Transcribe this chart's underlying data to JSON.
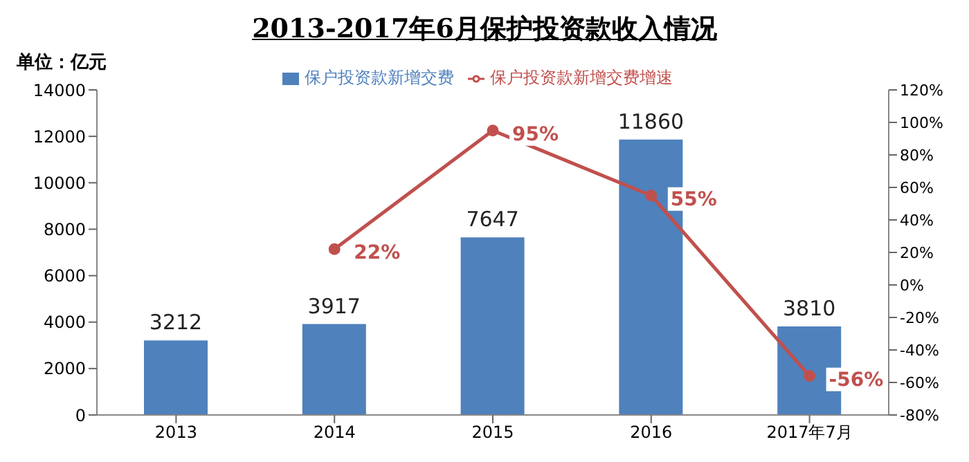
{
  "chart_data": {
    "type": "bar",
    "title": "2013-2017年6月保护投资款收入情况",
    "ylabel": "单位：亿元",
    "categories": [
      "2013",
      "2014",
      "2015",
      "2016",
      "2017年7月"
    ],
    "series": [
      {
        "name": "保户投资款新增交费",
        "color": "#4f81bd",
        "values": [
          3212,
          3917,
          7647,
          11860,
          3810
        ],
        "value_labels": [
          "3212",
          "3917",
          "7647",
          "11860",
          "3810"
        ]
      },
      {
        "name": "保户投资款新增交费增速",
        "type": "line",
        "axis": "y2",
        "color": "#c0504d",
        "values": [
          null,
          22,
          95,
          55,
          -56
        ],
        "value_labels": [
          null,
          "22%",
          "95%",
          "55%",
          "-56%"
        ]
      }
    ],
    "ylim": [
      0,
      14000
    ],
    "yticks": [
      0,
      2000,
      4000,
      6000,
      8000,
      10000,
      12000,
      14000
    ],
    "y2lim": [
      -80,
      120
    ],
    "y2ticks": [
      {
        "value": -80,
        "label": "-80%"
      },
      {
        "value": -60,
        "label": "-60%"
      },
      {
        "value": -40,
        "label": "-40%"
      },
      {
        "value": -20,
        "label": "-20%"
      },
      {
        "value": 0,
        "label": "0%"
      },
      {
        "value": 20,
        "label": "20%"
      },
      {
        "value": 40,
        "label": "40%"
      },
      {
        "value": 60,
        "label": "60%"
      },
      {
        "value": 80,
        "label": "80%"
      },
      {
        "value": 100,
        "label": "100%"
      },
      {
        "value": 120,
        "label": "120%"
      }
    ],
    "legend": "top",
    "grid": false,
    "marker": "circle"
  }
}
